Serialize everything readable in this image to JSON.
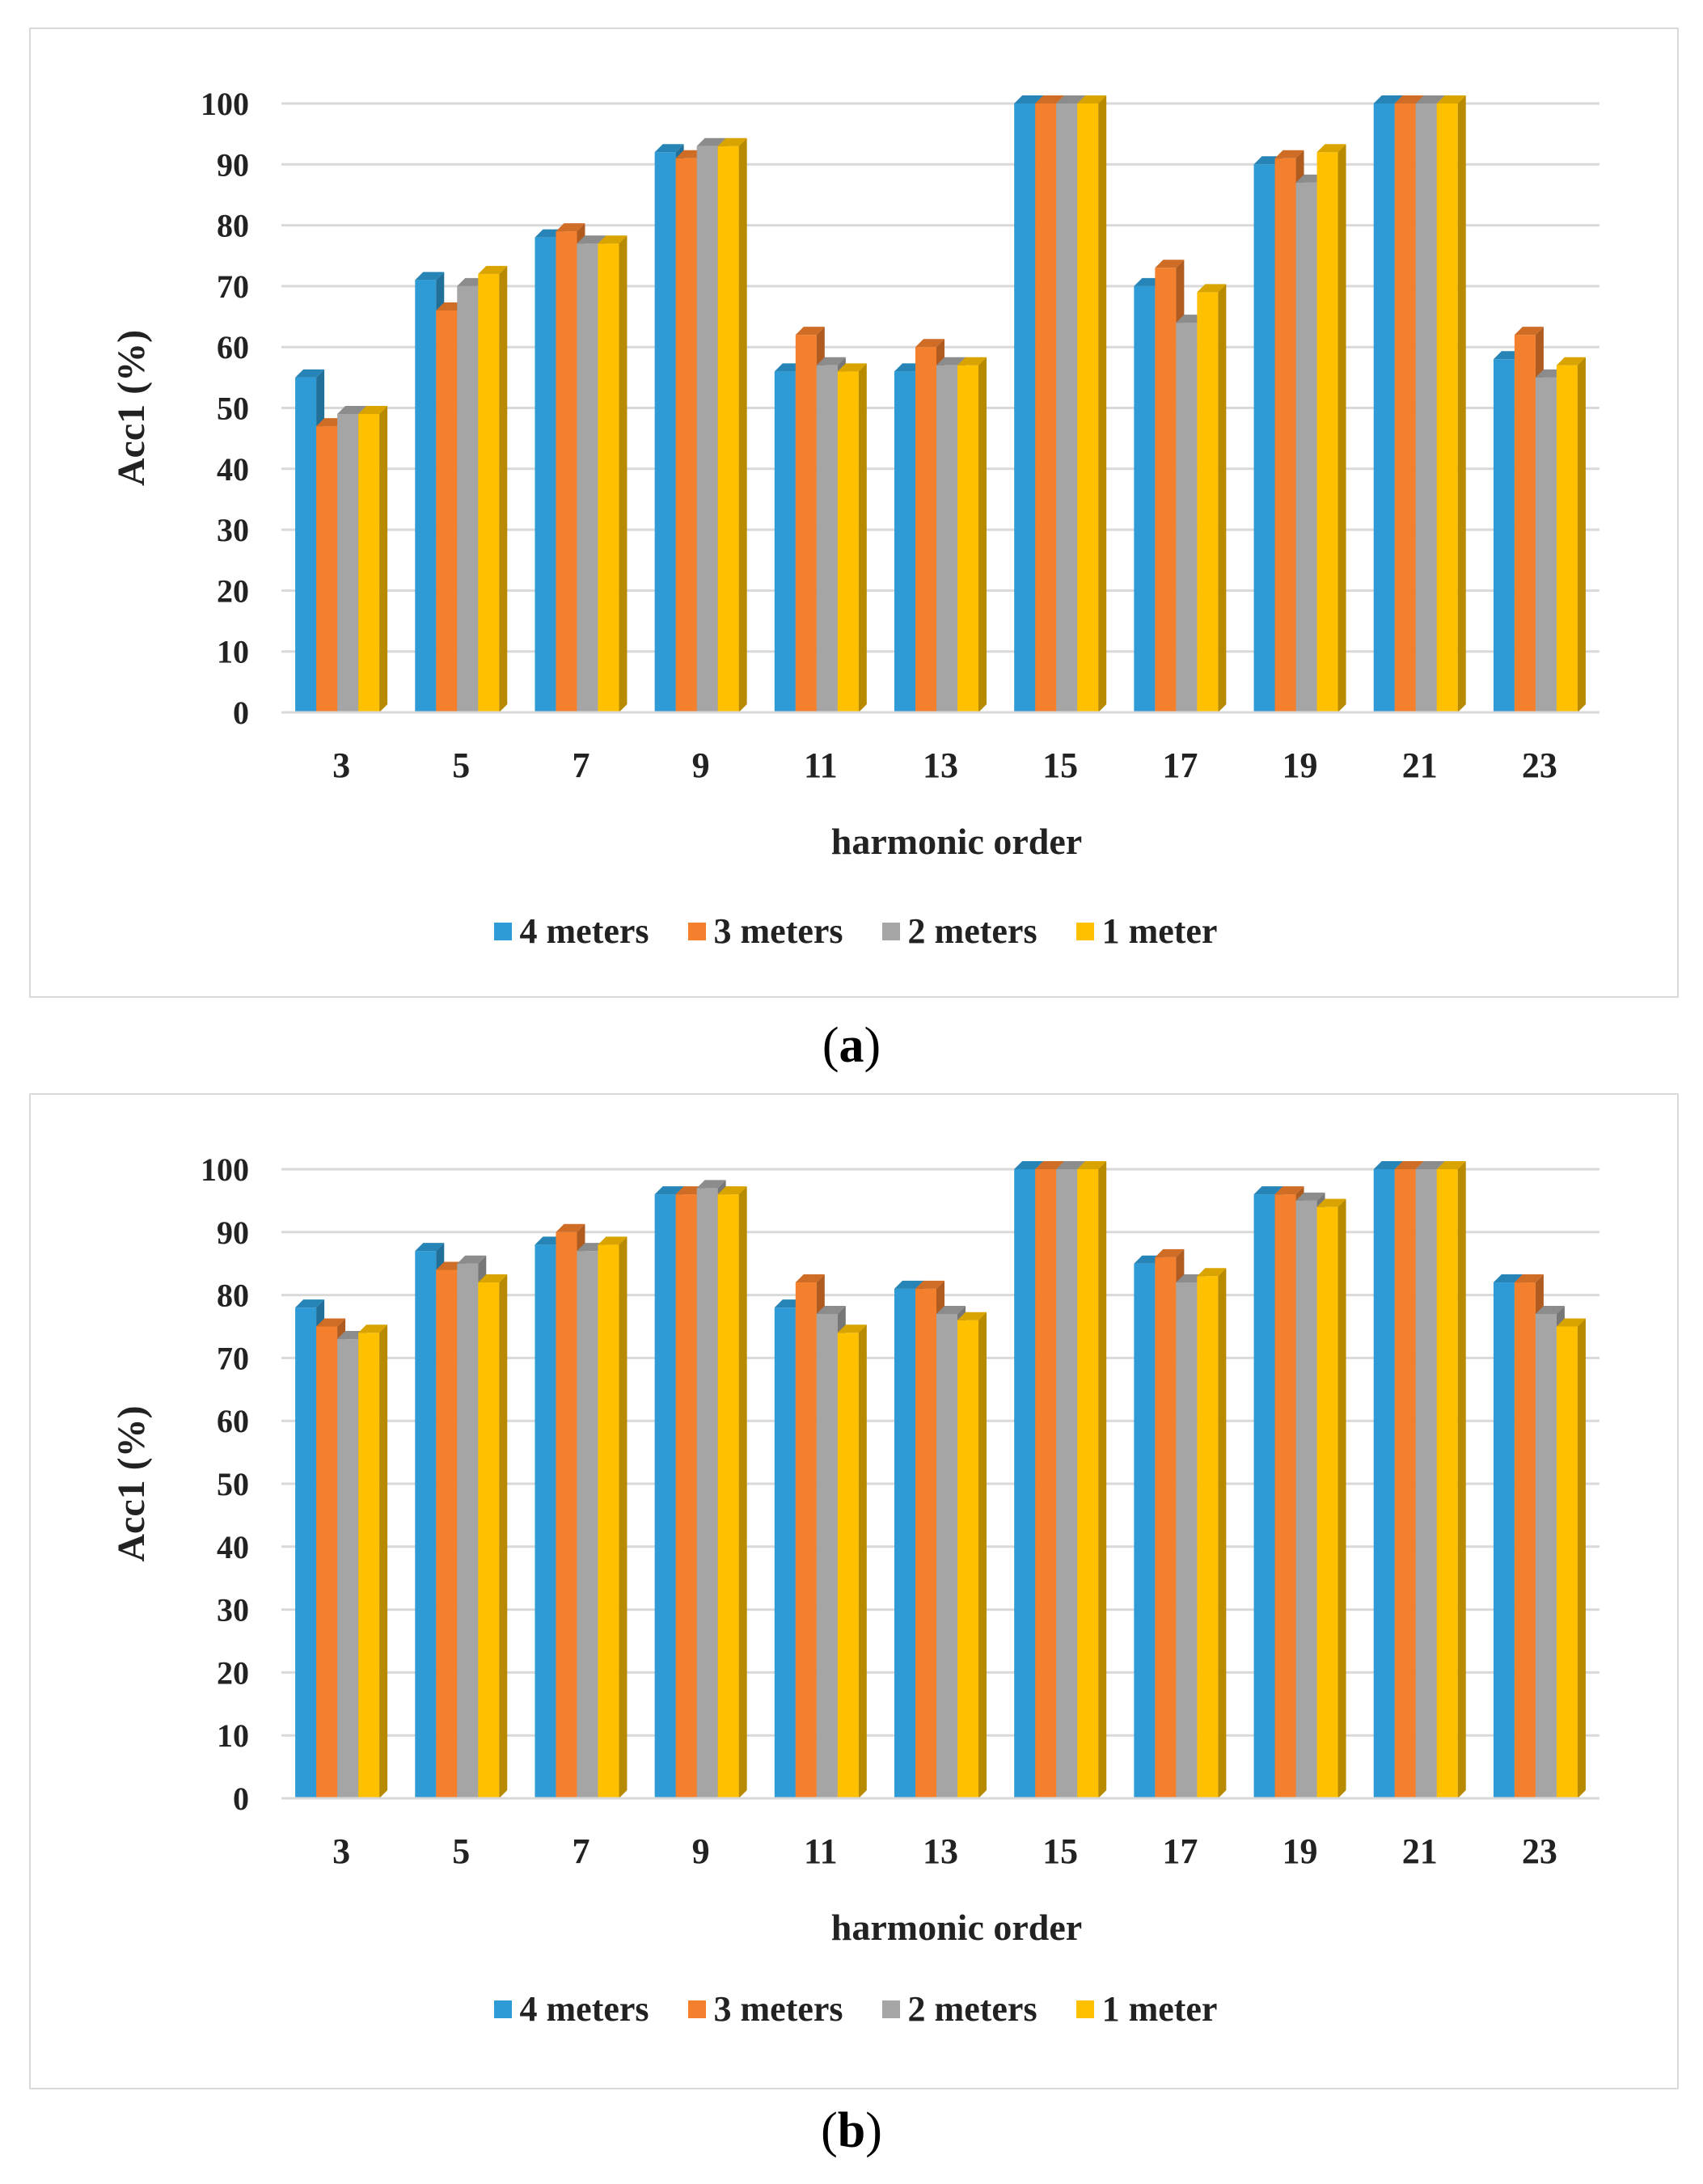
{
  "chart_data": [
    {
      "id": "a",
      "type": "bar",
      "panel_label": "a",
      "categories": [
        "3",
        "5",
        "7",
        "9",
        "11",
        "13",
        "15",
        "17",
        "19",
        "21",
        "23"
      ],
      "series": [
        {
          "name": "4 meters",
          "color": "#2E9BD6",
          "values": [
            55,
            71,
            78,
            92,
            56,
            56,
            100,
            70,
            90,
            100,
            58
          ]
        },
        {
          "name": "3 meters",
          "color": "#F47F2C",
          "values": [
            47,
            66,
            79,
            91,
            62,
            60,
            100,
            73,
            91,
            100,
            62
          ]
        },
        {
          "name": "2 meters",
          "color": "#A5A5A5",
          "values": [
            49,
            70,
            77,
            93,
            57,
            57,
            100,
            64,
            87,
            100,
            55
          ]
        },
        {
          "name": "1 meter",
          "color": "#FFC000",
          "values": [
            49,
            72,
            77,
            93,
            56,
            57,
            100,
            69,
            92,
            100,
            57
          ]
        }
      ],
      "xlabel": "harmonic order",
      "ylabel": "Acc1 (%)",
      "ylim": [
        0,
        100
      ],
      "yticks": [
        0,
        10,
        20,
        30,
        40,
        50,
        60,
        70,
        80,
        90,
        100
      ],
      "legend": "bottom",
      "grid": true
    },
    {
      "id": "b",
      "type": "bar",
      "panel_label": "b",
      "categories": [
        "3",
        "5",
        "7",
        "9",
        "11",
        "13",
        "15",
        "17",
        "19",
        "21",
        "23"
      ],
      "series": [
        {
          "name": "4 meters",
          "color": "#2E9BD6",
          "values": [
            78,
            87,
            88,
            96,
            78,
            81,
            100,
            85,
            96,
            100,
            82
          ]
        },
        {
          "name": "3 meters",
          "color": "#F47F2C",
          "values": [
            75,
            84,
            90,
            96,
            82,
            81,
            100,
            86,
            96,
            100,
            82
          ]
        },
        {
          "name": "2 meters",
          "color": "#A5A5A5",
          "values": [
            73,
            85,
            87,
            97,
            77,
            77,
            100,
            82,
            95,
            100,
            77
          ]
        },
        {
          "name": "1 meter",
          "color": "#FFC000",
          "values": [
            74,
            82,
            88,
            96,
            74,
            76,
            100,
            83,
            94,
            100,
            75
          ]
        }
      ],
      "xlabel": "harmonic order",
      "ylabel": "Acc1 (%)",
      "ylim": [
        0,
        100
      ],
      "yticks": [
        0,
        10,
        20,
        30,
        40,
        50,
        60,
        70,
        80,
        90,
        100
      ],
      "legend": "bottom",
      "grid": true
    }
  ]
}
